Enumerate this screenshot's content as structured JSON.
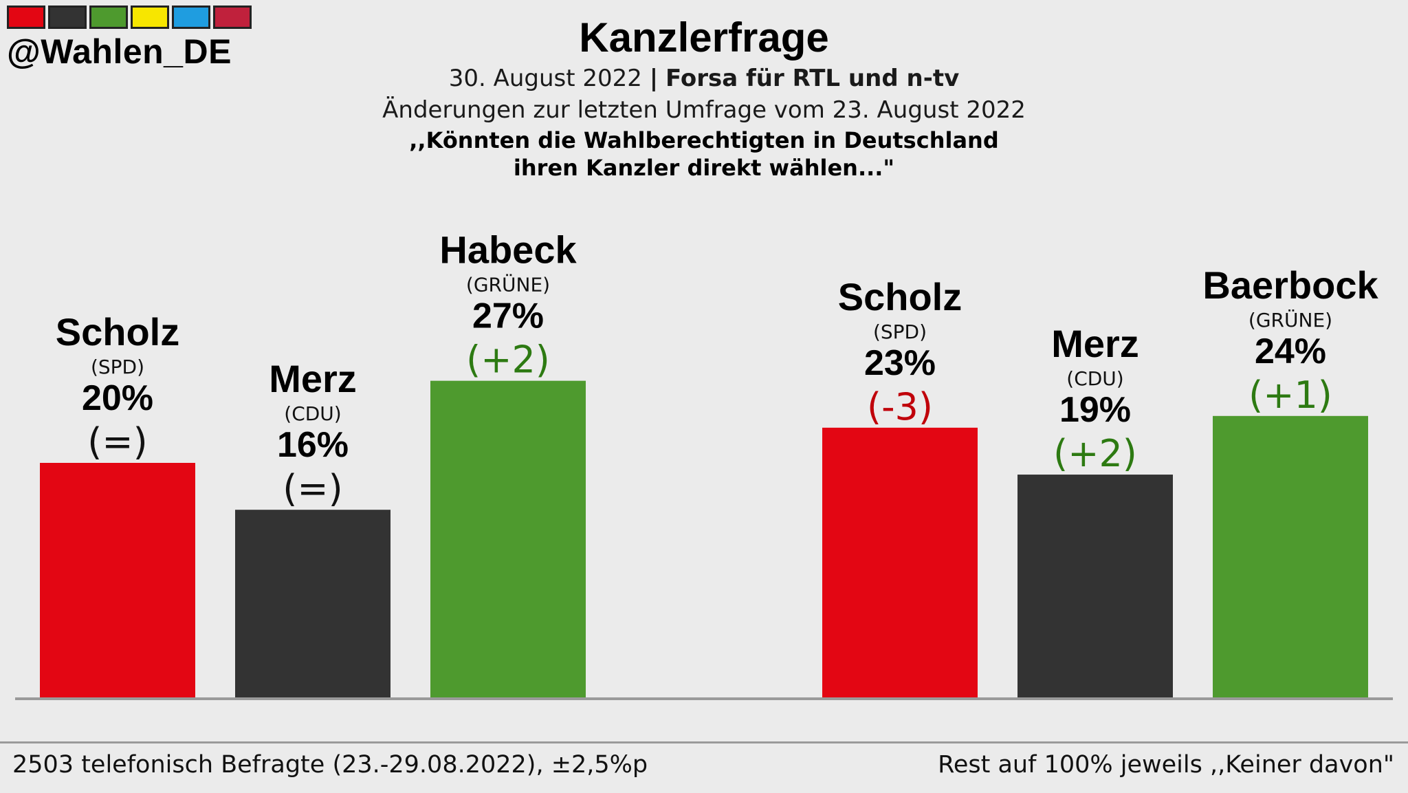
{
  "header": {
    "logo_colors": [
      "#e30613",
      "#333333",
      "#4e9a2e",
      "#f7e600",
      "#1f9de0",
      "#c0213c"
    ],
    "handle": "@Wahlen_DE",
    "title": "Kanzlerfrage",
    "date": "30. August 2022",
    "separator": "|",
    "source": "Forsa für RTL und n-tv",
    "changes_note": "Änderungen zur letzten Umfrage vom 23. August 2022",
    "question_line1": ",,Könnten die Wahlberechtigten in Deutschland",
    "question_line2": "ihren Kanzler direkt wählen...\""
  },
  "chart_data": [
    {
      "type": "bar",
      "categories": [
        "Scholz",
        "Merz",
        "Habeck"
      ],
      "parties": [
        "(SPD)",
        "(CDU)",
        "(GRÜNE)"
      ],
      "values": [
        20,
        16,
        27
      ],
      "value_labels": [
        "20%",
        "16%",
        "27%"
      ],
      "changes": [
        "(=)",
        "(=)",
        "(+2)"
      ],
      "change_signs": [
        "neutral",
        "neutral",
        "positive"
      ],
      "colors": [
        "#e30613",
        "#333333",
        "#4e9a2e"
      ],
      "ylim": [
        0,
        35
      ]
    },
    {
      "type": "bar",
      "categories": [
        "Scholz",
        "Merz",
        "Baerbock"
      ],
      "parties": [
        "(SPD)",
        "(CDU)",
        "(GRÜNE)"
      ],
      "values": [
        23,
        19,
        24
      ],
      "value_labels": [
        "23%",
        "19%",
        "24%"
      ],
      "changes": [
        "(-3)",
        "(+2)",
        "(+1)"
      ],
      "change_signs": [
        "negative",
        "positive",
        "positive"
      ],
      "colors": [
        "#e30613",
        "#333333",
        "#4e9a2e"
      ],
      "ylim": [
        0,
        35
      ]
    }
  ],
  "change_colors": {
    "neutral": "#111111",
    "positive": "#2d7a12",
    "negative": "#c0000a"
  },
  "footer": {
    "left": "2503 telefonisch Befragte (23.-29.08.2022), ±2,5%p",
    "right": "Rest auf 100% jeweils ,,Keiner davon\""
  }
}
